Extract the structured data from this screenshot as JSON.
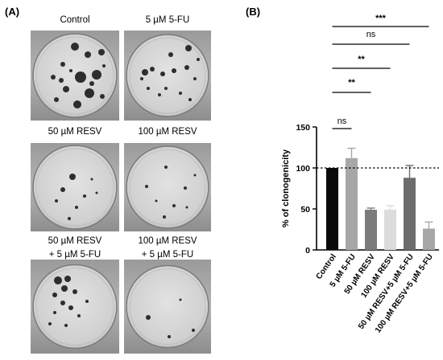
{
  "panel_a": {
    "label": "(A)",
    "plates": [
      {
        "caption": [
          "Control"
        ]
      },
      {
        "caption": [
          "5 µM 5-FU"
        ]
      },
      {
        "caption": [
          "50 µM RESV"
        ]
      },
      {
        "caption": [
          "100 µM RESV"
        ]
      },
      {
        "caption": [
          "50 µM RESV",
          "+ 5 µM 5-FU"
        ]
      },
      {
        "caption": [
          "100 µM RESV",
          "+ 5 µM 5-FU"
        ]
      }
    ]
  },
  "panel_b": {
    "label": "(B)"
  },
  "chart_data": {
    "type": "bar",
    "title": "",
    "xlabel": "",
    "ylabel": "% of clonogenicity",
    "ylim": [
      0,
      150
    ],
    "yticks": [
      0,
      50,
      100,
      150
    ],
    "reference_line": 100,
    "grid": false,
    "categories": [
      "Control",
      "5 µM 5-FU",
      "50 µM RESV",
      "100 µM RESV",
      "50 µM RESV+5 µM 5-FU",
      "100 µM RESV+5 µM 5-FU"
    ],
    "values": [
      100,
      112,
      49,
      49,
      88,
      26
    ],
    "errors": [
      0,
      12,
      2,
      5,
      15,
      8
    ],
    "bar_colors": [
      "#0a0a0a",
      "#a7a7a7",
      "#7b7b7b",
      "#dcdcdc",
      "#6c6c6c",
      "#a7a7a7"
    ],
    "significance": [
      {
        "from": 0,
        "to": 1,
        "label": "ns"
      },
      {
        "from": 0,
        "to": 2,
        "label": "**"
      },
      {
        "from": 0,
        "to": 3,
        "label": "**"
      },
      {
        "from": 0,
        "to": 4,
        "label": "ns"
      },
      {
        "from": 0,
        "to": 5,
        "label": "***"
      }
    ]
  }
}
